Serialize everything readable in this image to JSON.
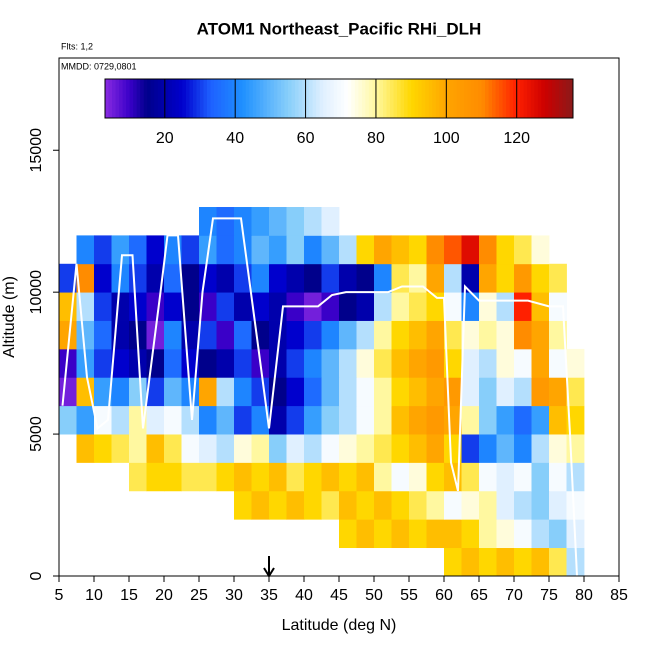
{
  "chart_data": {
    "type": "heatmap",
    "title": "ATOM1 Northeast_Pacific RHi_DLH",
    "note_flights": "Flts: 1,2",
    "note_dates": "MMDD: 0729,0801",
    "x_label": "Latitude (deg N)",
    "y_label": "Altitude (m)",
    "xlim": [
      5,
      85
    ],
    "ylim": [
      0,
      18250
    ],
    "xticks": [
      5,
      10,
      15,
      20,
      25,
      30,
      35,
      40,
      45,
      50,
      55,
      60,
      65,
      70,
      75,
      80,
      85
    ],
    "yticks": [
      0,
      5000,
      10000,
      15000
    ],
    "xbins": [
      5,
      7.5,
      10,
      12.5,
      15,
      17.5,
      20,
      22.5,
      25,
      27.5,
      30,
      32.5,
      35,
      37.5,
      40,
      42.5,
      45,
      47.5,
      50,
      52.5,
      55,
      57.5,
      60,
      62.5,
      65,
      67.5,
      70,
      72.5,
      75,
      77.5,
      80
    ],
    "ybins": [
      0,
      1000,
      2000,
      3000,
      4000,
      5000,
      6000,
      7000,
      8000,
      9000,
      10000,
      11000,
      12000,
      13000
    ],
    "values": [
      [
        null,
        null,
        null,
        null,
        null,
        null,
        null,
        null,
        null,
        null,
        null,
        null,
        null,
        null,
        null,
        null,
        null,
        null,
        null,
        null,
        null,
        null,
        90,
        95,
        90,
        95,
        90,
        95,
        85,
        60
      ],
      [
        null,
        null,
        null,
        null,
        null,
        null,
        null,
        null,
        null,
        null,
        null,
        null,
        null,
        null,
        null,
        null,
        90,
        95,
        90,
        95,
        90,
        95,
        95,
        90,
        80,
        75,
        70,
        60,
        55,
        65
      ],
      [
        null,
        null,
        null,
        null,
        null,
        null,
        null,
        null,
        null,
        null,
        90,
        95,
        90,
        95,
        90,
        85,
        95,
        90,
        95,
        90,
        85,
        80,
        70,
        75,
        80,
        65,
        60,
        55,
        65,
        70
      ],
      [
        null,
        null,
        null,
        null,
        85,
        90,
        90,
        85,
        85,
        90,
        95,
        90,
        95,
        85,
        90,
        95,
        90,
        95,
        80,
        70,
        75,
        90,
        95,
        85,
        70,
        65,
        70,
        55,
        70,
        60
      ],
      [
        null,
        95,
        90,
        85,
        80,
        95,
        85,
        70,
        65,
        60,
        75,
        80,
        55,
        65,
        60,
        70,
        75,
        80,
        85,
        90,
        95,
        100,
        90,
        30,
        40,
        50,
        40,
        60,
        75,
        80
      ],
      [
        55,
        45,
        70,
        60,
        80,
        65,
        70,
        60,
        40,
        50,
        30,
        40,
        20,
        30,
        45,
        55,
        60,
        70,
        80,
        95,
        100,
        105,
        100,
        80,
        55,
        45,
        35,
        45,
        95,
        90
      ],
      [
        5,
        95,
        45,
        40,
        55,
        30,
        50,
        40,
        100,
        60,
        40,
        30,
        15,
        25,
        35,
        50,
        60,
        70,
        80,
        90,
        95,
        100,
        105,
        65,
        55,
        65,
        60,
        105,
        100,
        85
      ],
      [
        10,
        45,
        30,
        25,
        20,
        15,
        35,
        25,
        15,
        20,
        30,
        10,
        20,
        30,
        40,
        50,
        60,
        75,
        85,
        95,
        100,
        105,
        90,
        65,
        60,
        75,
        70,
        100,
        70,
        75
      ],
      [
        100,
        50,
        35,
        20,
        15,
        5,
        40,
        20,
        30,
        10,
        35,
        15,
        20,
        25,
        30,
        40,
        50,
        60,
        80,
        90,
        95,
        100,
        85,
        75,
        80,
        75,
        110,
        100,
        80,
        null
      ],
      [
        95,
        60,
        30,
        20,
        25,
        10,
        25,
        15,
        10,
        30,
        20,
        25,
        20,
        10,
        5,
        10,
        15,
        20,
        60,
        80,
        85,
        90,
        70,
        40,
        75,
        60,
        120,
        95,
        70,
        null
      ],
      [
        30,
        110,
        25,
        40,
        30,
        20,
        35,
        15,
        25,
        20,
        30,
        40,
        25,
        20,
        15,
        30,
        20,
        15,
        40,
        85,
        80,
        100,
        60,
        20,
        100,
        90,
        105,
        90,
        85,
        null
      ],
      [
        null,
        40,
        30,
        45,
        35,
        25,
        40,
        30,
        45,
        35,
        40,
        50,
        45,
        55,
        40,
        50,
        60,
        90,
        100,
        95,
        90,
        110,
        115,
        125,
        110,
        90,
        85,
        75,
        null,
        null
      ],
      [
        null,
        null,
        null,
        null,
        null,
        null,
        null,
        null,
        40,
        35,
        40,
        45,
        50,
        55,
        60,
        65,
        null,
        null,
        null,
        null,
        null,
        null,
        null,
        null,
        null,
        null,
        null,
        null,
        null,
        null
      ]
    ],
    "clim": [
      3,
      136
    ],
    "colorbar_ticks": [
      20,
      40,
      60,
      80,
      100,
      120
    ],
    "colormap": [
      [
        3,
        "#8a2be2"
      ],
      [
        10,
        "#3a00c8"
      ],
      [
        15,
        "#00008b"
      ],
      [
        25,
        "#0000cd"
      ],
      [
        33,
        "#1e60ff"
      ],
      [
        42,
        "#1e90ff"
      ],
      [
        55,
        "#87cefa"
      ],
      [
        65,
        "#e0f0ff"
      ],
      [
        72,
        "#ffffff"
      ],
      [
        80,
        "#fff8a0"
      ],
      [
        90,
        "#ffd700"
      ],
      [
        100,
        "#ffa500"
      ],
      [
        110,
        "#ff8c00"
      ],
      [
        120,
        "#ff2000"
      ],
      [
        128,
        "#cc0000"
      ],
      [
        136,
        "#8b1a1a"
      ]
    ],
    "track": {
      "color": "#ffffff",
      "x": [
        5.5,
        7.5,
        9,
        10.5,
        12,
        14,
        15.5,
        17,
        19.5,
        20.5,
        22,
        24,
        25.5,
        27,
        31,
        33.5,
        35,
        37,
        42,
        44,
        46,
        52,
        54,
        57,
        59,
        60,
        61,
        62,
        63,
        65,
        70,
        72,
        75,
        77,
        78,
        79
      ],
      "y": [
        6000,
        11000,
        7000,
        5200,
        5500,
        11300,
        11300,
        5200,
        10000,
        12000,
        12000,
        5500,
        10000,
        12600,
        12600,
        8000,
        5200,
        9500,
        9500,
        9900,
        10000,
        10000,
        10200,
        10200,
        9800,
        9800,
        4000,
        3000,
        10200,
        9700,
        9700,
        9700,
        9500,
        9500,
        5000,
        0
      ]
    },
    "marker_lat": 35
  }
}
